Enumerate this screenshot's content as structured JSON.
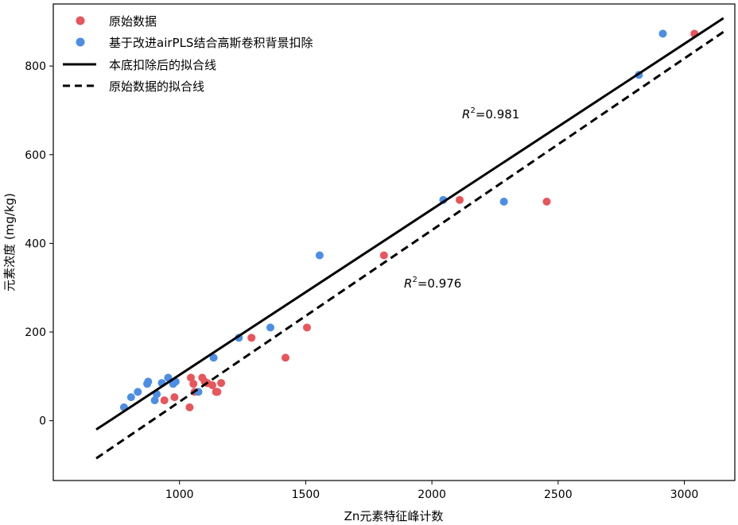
{
  "chart_data": {
    "type": "scatter",
    "xlabel": "Zn元素特征峰计数",
    "ylabel": "元素浓度 (mg/kg)",
    "xlim": [
      500,
      3200
    ],
    "ylim": [
      -135,
      940
    ],
    "xticks": [
      1000,
      1500,
      2000,
      2500,
      3000
    ],
    "yticks": [
      0,
      200,
      400,
      600,
      800
    ],
    "grid": false,
    "legend_position": "top-left",
    "series": [
      {
        "name": "原始数据",
        "type": "scatter",
        "color": "#e8555a",
        "points": [
          [
            940,
            46
          ],
          [
            980,
            53
          ],
          [
            1040,
            30
          ],
          [
            1045,
            97
          ],
          [
            1055,
            83
          ],
          [
            1060,
            65
          ],
          [
            1090,
            97
          ],
          [
            1100,
            88
          ],
          [
            1110,
            85
          ],
          [
            1130,
            80
          ],
          [
            1145,
            65
          ],
          [
            1150,
            65
          ],
          [
            1165,
            85
          ],
          [
            1285,
            187
          ],
          [
            1420,
            142
          ],
          [
            1505,
            210
          ],
          [
            1810,
            373
          ],
          [
            2110,
            498
          ],
          [
            2455,
            494
          ],
          [
            3040,
            873
          ]
        ]
      },
      {
        "name": "基于改进airPLS结合高斯卷积背景扣除",
        "type": "scatter",
        "color": "#4c8ee6",
        "points": [
          [
            780,
            30
          ],
          [
            808,
            53
          ],
          [
            835,
            65
          ],
          [
            872,
            83
          ],
          [
            876,
            88
          ],
          [
            902,
            46
          ],
          [
            910,
            60
          ],
          [
            930,
            85
          ],
          [
            955,
            97
          ],
          [
            975,
            83
          ],
          [
            985,
            88
          ],
          [
            1075,
            65
          ],
          [
            1135,
            142
          ],
          [
            1235,
            187
          ],
          [
            1360,
            210
          ],
          [
            1555,
            373
          ],
          [
            2045,
            498
          ],
          [
            2285,
            494
          ],
          [
            2820,
            780
          ],
          [
            2915,
            873
          ]
        ]
      },
      {
        "name": "本底扣除后的拟合线",
        "type": "line",
        "style": "solid",
        "color": "#000000",
        "x": [
          670,
          3155
        ],
        "y": [
          -20,
          908
        ]
      },
      {
        "name": "原始数据的拟合线",
        "type": "line",
        "style": "dashed",
        "color": "#000000",
        "x": [
          670,
          3155
        ],
        "y": [
          -85,
          877
        ]
      }
    ],
    "annotations": [
      {
        "text": "0.981",
        "x": 2190,
        "y": 705
      },
      {
        "text": "0.976",
        "x": 1960,
        "y": 318
      }
    ]
  }
}
